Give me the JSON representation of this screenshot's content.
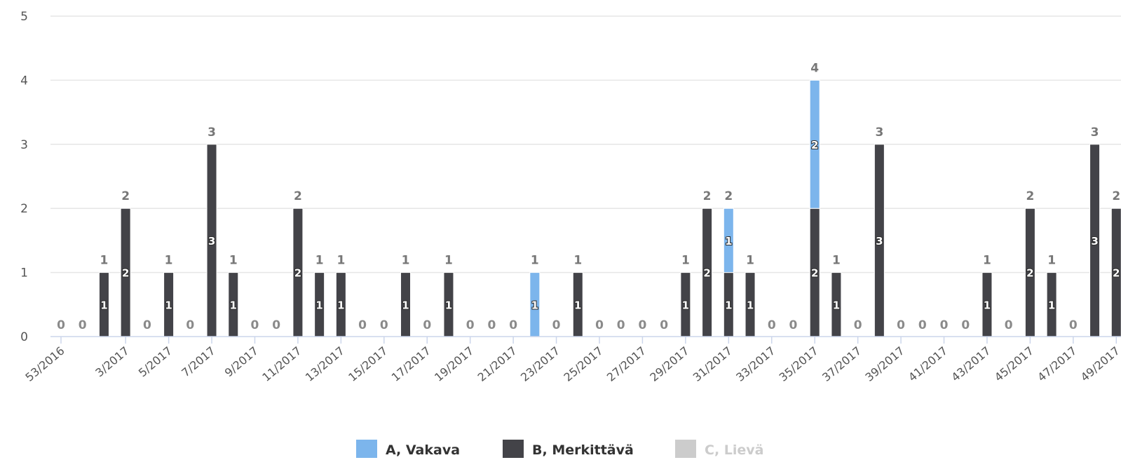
{
  "chart_data": {
    "type": "bar",
    "stacked": true,
    "categories": [
      "53/2016",
      "1/2017",
      "2/2017",
      "3/2017",
      "4/2017",
      "5/2017",
      "6/2017",
      "7/2017",
      "8/2017",
      "9/2017",
      "10/2017",
      "11/2017",
      "12/2017",
      "13/2017",
      "14/2017",
      "15/2017",
      "16/2017",
      "17/2017",
      "18/2017",
      "19/2017",
      "20/2017",
      "21/2017",
      "22/2017",
      "23/2017",
      "24/2017",
      "25/2017",
      "26/2017",
      "27/2017",
      "28/2017",
      "29/2017",
      "30/2017",
      "31/2017",
      "32/2017",
      "33/2017",
      "34/2017",
      "35/2017",
      "36/2017",
      "37/2017",
      "38/2017",
      "39/2017",
      "40/2017",
      "41/2017",
      "42/2017",
      "43/2017",
      "44/2017",
      "45/2017",
      "46/2017",
      "47/2017",
      "48/2017",
      "49/2017"
    ],
    "visible_tick_labels": [
      "53/2016",
      "3/2017",
      "5/2017",
      "7/2017",
      "9/2017",
      "11/2017",
      "13/2017",
      "15/2017",
      "17/2017",
      "19/2017",
      "21/2017",
      "23/2017",
      "25/2017",
      "27/2017",
      "29/2017",
      "31/2017",
      "33/2017",
      "35/2017",
      "37/2017",
      "39/2017",
      "41/2017",
      "43/2017",
      "45/2017",
      "47/2017",
      "49/2017"
    ],
    "series": [
      {
        "name": "A, Vakava",
        "color": "#7cb5ec",
        "visible": true,
        "values": [
          0,
          0,
          0,
          0,
          0,
          0,
          0,
          0,
          0,
          0,
          0,
          0,
          0,
          0,
          0,
          0,
          0,
          0,
          0,
          0,
          0,
          0,
          1,
          0,
          0,
          0,
          0,
          0,
          0,
          0,
          0,
          1,
          0,
          0,
          0,
          2,
          0,
          0,
          0,
          0,
          0,
          0,
          0,
          0,
          0,
          0,
          0,
          0,
          0,
          0
        ]
      },
      {
        "name": "B, Merkittävä",
        "color": "#434348",
        "visible": true,
        "values": [
          0,
          0,
          1,
          2,
          0,
          1,
          0,
          3,
          1,
          0,
          0,
          2,
          1,
          1,
          0,
          0,
          1,
          0,
          1,
          0,
          0,
          0,
          0,
          0,
          1,
          0,
          0,
          0,
          0,
          1,
          2,
          1,
          1,
          0,
          0,
          2,
          1,
          0,
          3,
          0,
          0,
          0,
          0,
          1,
          0,
          2,
          1,
          0,
          3,
          2
        ]
      },
      {
        "name": "C, Lievä",
        "color": "#cccccc",
        "visible": false
      }
    ],
    "ylim": [
      0,
      5
    ],
    "yticks": [
      0,
      1,
      2,
      3,
      4,
      5
    ],
    "grid": true,
    "legend_position": "bottom-center",
    "title": "",
    "xlabel": "",
    "ylabel": ""
  }
}
